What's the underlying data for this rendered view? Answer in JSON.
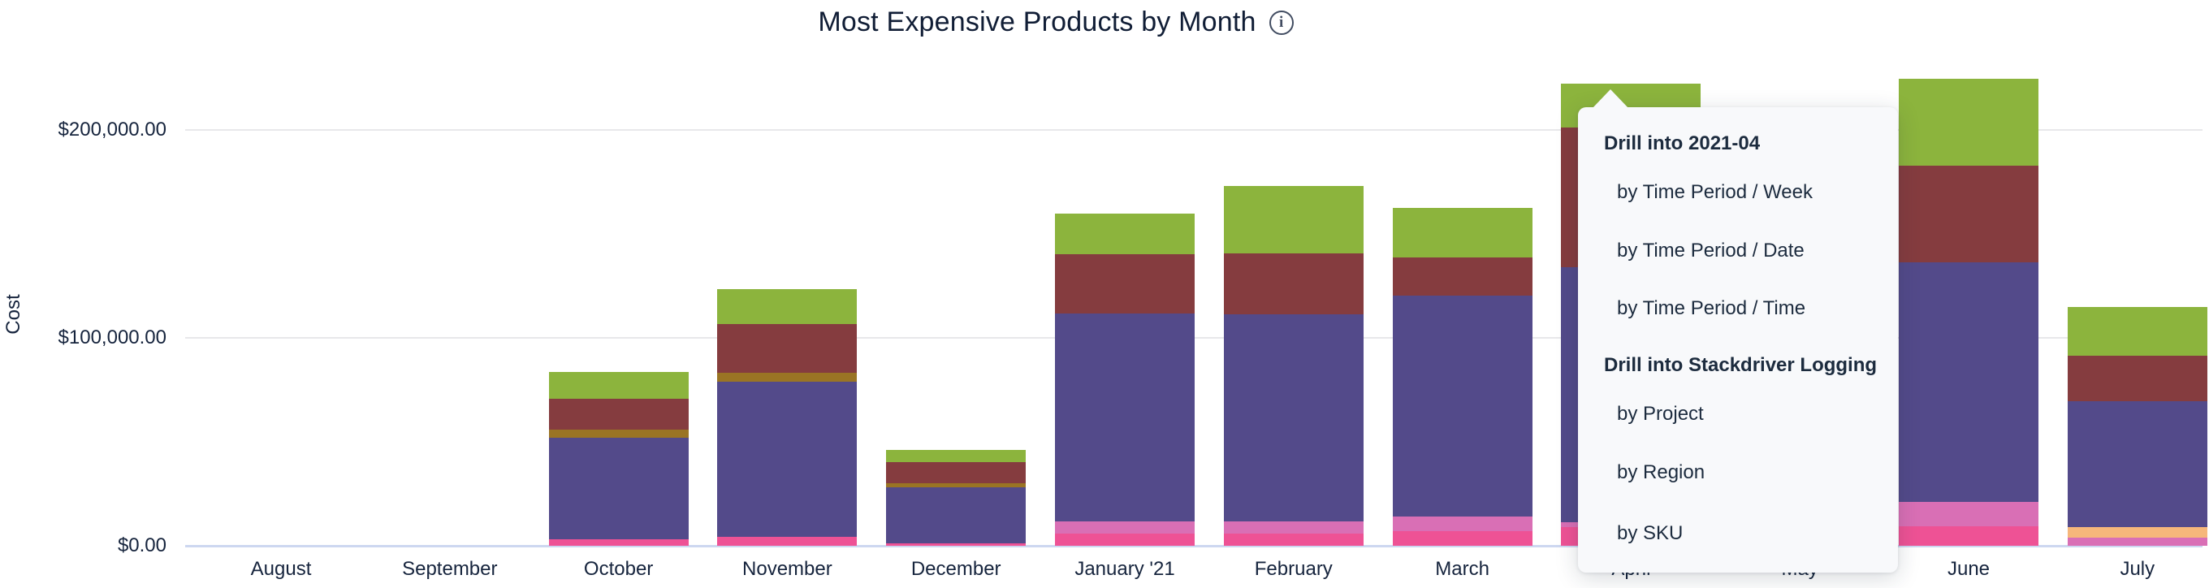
{
  "title": {
    "text": "Most Expensive Products by Month",
    "info_icon": "i"
  },
  "y_axis": {
    "title": "Cost",
    "ticks": [
      {
        "label": "$200,000.00",
        "value": 200000
      },
      {
        "label": "$100,000.00",
        "value": 100000
      },
      {
        "label": "$0.00",
        "value": 0
      }
    ]
  },
  "menu": {
    "sections": [
      {
        "header": "Drill into 2021-04",
        "items": [
          {
            "label": "by Time Period / Week"
          },
          {
            "label": "by Time Period / Date"
          },
          {
            "label": "by Time Period / Time"
          }
        ]
      },
      {
        "header": "Drill into Stackdriver Logging",
        "items": [
          {
            "label": "by Project"
          },
          {
            "label": "by Region"
          },
          {
            "label": "by SKU"
          }
        ]
      }
    ]
  },
  "chart_data": {
    "type": "bar",
    "stacked": true,
    "title": "Most Expensive Products by Month",
    "xlabel": "",
    "ylabel": "Cost",
    "ylim": [
      0,
      230000
    ],
    "y_tick_labels": [
      "$0.00",
      "$100,000.00",
      "$200,000.00"
    ],
    "grid": "horizontal",
    "legend": "none",
    "categories": [
      "August",
      "September",
      "October",
      "November",
      "December",
      "January '21",
      "February",
      "March",
      "April",
      "May",
      "June",
      "July"
    ],
    "colors": {
      "green": "#8CB43D",
      "maroon": "#853C3F",
      "olive": "#9A7424",
      "purple": "#534A8A",
      "orchid": "#D96FB5",
      "hotpink": "#EE5295",
      "orange": "#F6B77B"
    },
    "bars": [
      {
        "month": "August",
        "total": 0,
        "segments": []
      },
      {
        "month": "September",
        "total": 0,
        "segments": []
      },
      {
        "month": "October",
        "total": 83500,
        "segments": [
          {
            "color": "hotpink",
            "value": 3100
          },
          {
            "color": "purple",
            "value": 48800
          },
          {
            "color": "olive",
            "value": 3900
          },
          {
            "color": "maroon",
            "value": 14800
          },
          {
            "color": "green",
            "value": 12900
          }
        ]
      },
      {
        "month": "November",
        "total": 123300,
        "segments": [
          {
            "color": "hotpink",
            "value": 4300
          },
          {
            "color": "purple",
            "value": 74500
          },
          {
            "color": "olive",
            "value": 4300
          },
          {
            "color": "maroon",
            "value": 23400
          },
          {
            "color": "green",
            "value": 16800
          }
        ]
      },
      {
        "month": "December",
        "total": 46100,
        "segments": [
          {
            "color": "hotpink",
            "value": 1200
          },
          {
            "color": "purple",
            "value": 26900
          },
          {
            "color": "olive",
            "value": 2000
          },
          {
            "color": "maroon",
            "value": 10100
          },
          {
            "color": "green",
            "value": 5900
          }
        ]
      },
      {
        "month": "January '21",
        "total": 159600,
        "segments": [
          {
            "color": "hotpink",
            "value": 5500
          },
          {
            "color": "orchid",
            "value": 6200
          },
          {
            "color": "purple",
            "value": 99900
          },
          {
            "color": "maroon",
            "value": 28500
          },
          {
            "color": "green",
            "value": 19500
          }
        ]
      },
      {
        "month": "February",
        "total": 172900,
        "segments": [
          {
            "color": "hotpink",
            "value": 5900
          },
          {
            "color": "orchid",
            "value": 5500
          },
          {
            "color": "purple",
            "value": 99800
          },
          {
            "color": "maroon",
            "value": 29300
          },
          {
            "color": "green",
            "value": 32400
          }
        ]
      },
      {
        "month": "March",
        "total": 162600,
        "segments": [
          {
            "color": "hotpink",
            "value": 7000
          },
          {
            "color": "orchid",
            "value": 7000
          },
          {
            "color": "purple",
            "value": 106500
          },
          {
            "color": "maroon",
            "value": 18300
          },
          {
            "color": "green",
            "value": 23800
          }
        ]
      },
      {
        "month": "April",
        "total": 222400,
        "segments": [
          {
            "color": "hotpink",
            "value": 9000
          },
          {
            "color": "orchid",
            "value": 2300
          },
          {
            "color": "purple",
            "value": 122900
          },
          {
            "color": "maroon",
            "value": 67100
          },
          {
            "color": "green",
            "value": 21100
          }
        ]
      },
      {
        "month": "May",
        "obscured_by_menu": true,
        "segments": []
      },
      {
        "month": "June",
        "total": 224600,
        "segments": [
          {
            "color": "hotpink",
            "value": 9400
          },
          {
            "color": "orchid",
            "value": 11700
          },
          {
            "color": "purple",
            "value": 115400
          },
          {
            "color": "maroon",
            "value": 46400
          },
          {
            "color": "green",
            "value": 41700
          }
        ]
      },
      {
        "month": "July",
        "total": 115000,
        "segments": [
          {
            "color": "orchid",
            "value": 3900
          },
          {
            "color": "orange",
            "value": 5100
          },
          {
            "color": "purple",
            "value": 60800
          },
          {
            "color": "maroon",
            "value": 21800
          },
          {
            "color": "green",
            "value": 23400
          }
        ]
      }
    ]
  }
}
